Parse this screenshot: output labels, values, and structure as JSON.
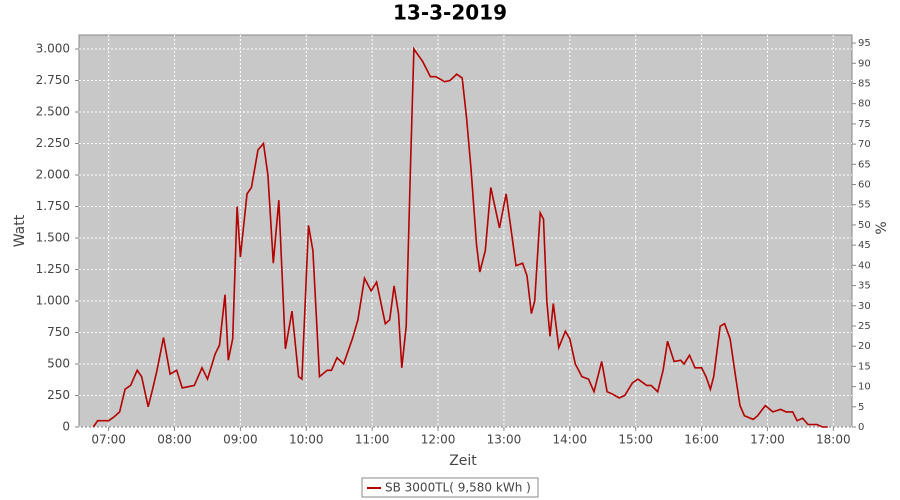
{
  "chart_data": {
    "type": "line",
    "title": "13-3-2019",
    "x_label": "Zeit",
    "y_label": "Watt",
    "y2_label": "%",
    "x": [
      "06:46",
      "06:50",
      "07:00",
      "07:05",
      "07:10",
      "07:15",
      "07:20",
      "07:26",
      "07:30",
      "07:36",
      "07:40",
      "07:44",
      "07:50",
      "07:56",
      "08:02",
      "08:07",
      "08:18",
      "08:25",
      "08:30",
      "08:37",
      "08:41",
      "08:46",
      "08:49",
      "08:53",
      "08:57",
      "09:00",
      "09:06",
      "09:10",
      "09:16",
      "09:21",
      "09:25",
      "09:30",
      "09:35",
      "09:41",
      "09:47",
      "09:53",
      "09:56",
      "10:02",
      "10:06",
      "10:12",
      "10:19",
      "10:23",
      "10:28",
      "10:34",
      "10:42",
      "10:47",
      "10:53",
      "10:59",
      "11:04",
      "11:12",
      "11:16",
      "11:20",
      "11:24",
      "11:27",
      "11:31",
      "11:35",
      "11:38",
      "11:42",
      "11:46",
      "11:53",
      "11:58",
      "12:06",
      "12:11",
      "12:17",
      "12:22",
      "12:26",
      "12:30",
      "12:35",
      "12:38",
      "12:43",
      "12:48",
      "12:56",
      "13:02",
      "13:06",
      "13:11",
      "13:17",
      "13:21",
      "13:25",
      "13:28",
      "13:33",
      "13:36",
      "13:39",
      "13:42",
      "13:45",
      "13:50",
      "13:56",
      "14:00",
      "14:05",
      "14:11",
      "14:17",
      "14:22",
      "14:29",
      "14:34",
      "14:39",
      "14:45",
      "14:50",
      "14:57",
      "15:02",
      "15:10",
      "15:14",
      "15:20",
      "15:25",
      "15:29",
      "15:35",
      "15:41",
      "15:44",
      "15:49",
      "15:54",
      "16:00",
      "16:04",
      "16:08",
      "16:11",
      "16:17",
      "16:21",
      "16:26",
      "16:31",
      "16:35",
      "16:39",
      "16:47",
      "16:51",
      "16:58",
      "17:05",
      "17:12",
      "17:17",
      "17:23",
      "17:27",
      "17:32",
      "17:37",
      "17:45",
      "17:50",
      "17:55"
    ],
    "series": [
      {
        "name": "SB 3000TL( 9,580 kWh )",
        "color": "#b40000",
        "values": [
          0,
          50,
          50,
          80,
          120,
          300,
          330,
          450,
          400,
          160,
          300,
          450,
          710,
          420,
          450,
          310,
          330,
          470,
          380,
          580,
          650,
          1050,
          530,
          700,
          1750,
          1350,
          1850,
          1900,
          2200,
          2250,
          2000,
          1300,
          1800,
          620,
          920,
          400,
          380,
          1600,
          1400,
          400,
          450,
          450,
          550,
          500,
          700,
          850,
          1180,
          1080,
          1150,
          820,
          850,
          1120,
          900,
          470,
          800,
          2100,
          3000,
          2950,
          2900,
          2780,
          2780,
          2740,
          2750,
          2800,
          2770,
          2450,
          2050,
          1450,
          1230,
          1400,
          1900,
          1580,
          1850,
          1600,
          1280,
          1300,
          1200,
          900,
          1000,
          1700,
          1650,
          1000,
          720,
          980,
          630,
          760,
          700,
          500,
          400,
          380,
          280,
          520,
          280,
          260,
          230,
          250,
          350,
          380,
          330,
          330,
          280,
          450,
          680,
          520,
          530,
          500,
          570,
          470,
          470,
          400,
          300,
          400,
          800,
          820,
          700,
          400,
          170,
          90,
          60,
          90,
          170,
          120,
          140,
          120,
          120,
          50,
          70,
          20,
          20,
          0,
          0
        ]
      }
    ],
    "xlim": [
      "06:33",
      "18:17"
    ],
    "xticks": [
      "07:00",
      "08:00",
      "09:00",
      "10:00",
      "11:00",
      "12:00",
      "13:00",
      "14:00",
      "15:00",
      "16:00",
      "17:00",
      "18:00"
    ],
    "ylim": [
      0,
      3111
    ],
    "yticks": [
      0,
      250,
      500,
      750,
      {
        "value": 1000,
        "label": "1.000"
      },
      {
        "value": 1250,
        "label": "1.250"
      },
      {
        "value": 1500,
        "label": "1.500"
      },
      {
        "value": 1750,
        "label": "1.750"
      },
      {
        "value": 2000,
        "label": "2.000"
      },
      {
        "value": 2250,
        "label": "2.250"
      },
      {
        "value": 2500,
        "label": "2.500"
      },
      {
        "value": 2750,
        "label": "2.750"
      },
      {
        "value": 3000,
        "label": "3.000"
      }
    ],
    "y2lim": [
      0,
      97
    ],
    "y2ticks": [
      0,
      5,
      10,
      15,
      20,
      25,
      30,
      35,
      40,
      45,
      50,
      55,
      60,
      65,
      70,
      75,
      80,
      85,
      90,
      95
    ],
    "grid": true
  }
}
